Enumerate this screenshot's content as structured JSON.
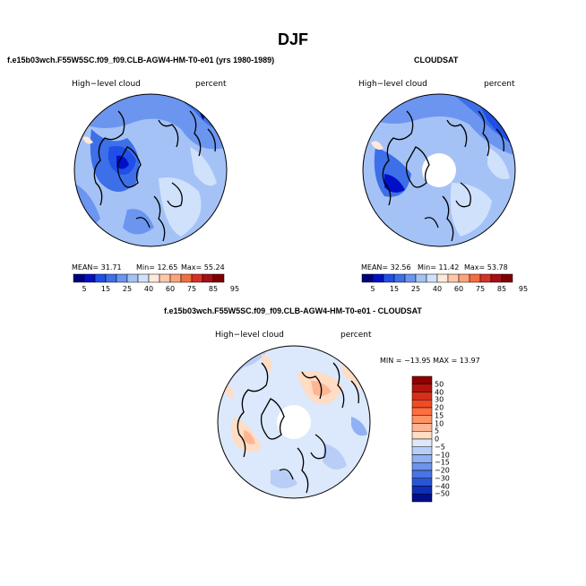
{
  "page": {
    "title": "DJF"
  },
  "panel_model": {
    "case_title": "f.e15b03wch.F55W5SC.f09_f09.CLB-AGW4-HM-T0-e01 (yrs 1980-1989)",
    "field_label": "High−level cloud",
    "units_label": "percent",
    "stats": {
      "mean": "MEAN=   31.71",
      "min": "Min=   12.65",
      "max": "Max=   55.24"
    }
  },
  "panel_obs": {
    "case_title": "CLOUDSAT",
    "field_label": "High−level cloud",
    "units_label": "percent",
    "stats": {
      "mean": "MEAN=   32.56",
      "min": "Min=   11.42",
      "max": "Max=   53.78"
    }
  },
  "panel_diff": {
    "case_title": "f.e15b03wch.F55W5SC.f09_f09.CLB-AGW4-HM-T0-e01 - CLOUDSAT",
    "field_label": "High−level cloud",
    "units_label": "percent",
    "minmax": "MIN = −13.95  MAX =   13.97"
  },
  "colorbar_abs": {
    "ticks": [
      "5",
      "15",
      "25",
      "40",
      "60",
      "75",
      "85",
      "95"
    ],
    "colors": [
      "#00007f",
      "#0010c8",
      "#1f4fe6",
      "#3d6fe9",
      "#6b95ef",
      "#a4c2f6",
      "#d0e1fb",
      "#ffe9d9",
      "#ffc7a8",
      "#fda37a",
      "#f46d43",
      "#d73027",
      "#a50f15",
      "#7f0000"
    ]
  },
  "colorbar_diff": {
    "ticks": [
      "50",
      "40",
      "30",
      "20",
      "15",
      "10",
      "5",
      "0",
      "−5",
      "−10",
      "−15",
      "−20",
      "−30",
      "−40",
      "−50"
    ],
    "colors": [
      "#8b0000",
      "#b2140c",
      "#d62f1a",
      "#f24a25",
      "#ff6e3f",
      "#ff9366",
      "#ffb593",
      "#ffdcc4",
      "#dce8fb",
      "#b8cef7",
      "#90b1f2",
      "#6d93ec",
      "#4a74e4",
      "#2a54d6",
      "#0e2eb8",
      "#000e8c"
    ]
  }
}
